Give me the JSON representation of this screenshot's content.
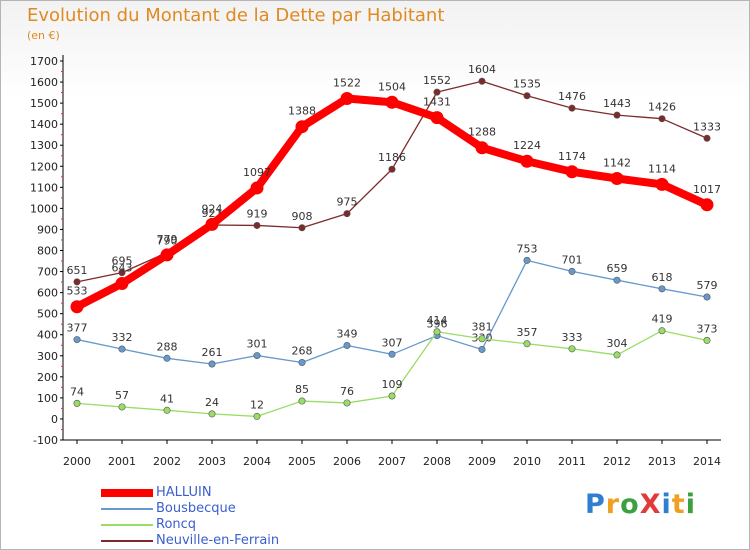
{
  "title": "Evolution du Montant de la Dette par Habitant",
  "subtitle": "(en €)",
  "logo": {
    "text": "ProXiti",
    "letter_colors": [
      "#2f7fd0",
      "#f0a020",
      "#3aa040",
      "#e03a3a",
      "#2f7fd0",
      "#f0a020",
      "#3aa040"
    ]
  },
  "chart_data": {
    "type": "line",
    "title": "Evolution du Montant de la Dette par Habitant",
    "subtitle": "(en €)",
    "xlabel": "",
    "ylabel": "",
    "ylim": [
      -100,
      1700
    ],
    "yticks": [
      -100,
      0,
      100,
      200,
      300,
      400,
      500,
      600,
      700,
      800,
      900,
      1000,
      1100,
      1200,
      1300,
      1400,
      1500,
      1600,
      1700
    ],
    "grid": false,
    "legend_position": "bottom-left",
    "categories": [
      "2000",
      "2001",
      "2002",
      "2003",
      "2004",
      "2005",
      "2006",
      "2007",
      "2008",
      "2009",
      "2010",
      "2011",
      "2012",
      "2013",
      "2014"
    ],
    "series": [
      {
        "name": "HALLUIN",
        "color": "#ff0000",
        "values": [
          533,
          643,
          779,
          924,
          1097,
          1388,
          1522,
          1504,
          1431,
          1288,
          1224,
          1174,
          1142,
          1114,
          1017
        ]
      },
      {
        "name": "Bousbecque",
        "color": "#6699cc",
        "values": [
          377,
          332,
          288,
          261,
          301,
          268,
          349,
          307,
          396,
          330,
          753,
          701,
          659,
          618,
          579
        ]
      },
      {
        "name": "Roncq",
        "color": "#99dd66",
        "values": [
          74,
          57,
          41,
          24,
          12,
          85,
          76,
          109,
          414,
          381,
          357,
          333,
          304,
          419,
          373
        ]
      },
      {
        "name": "Neuville-en-Ferrain",
        "color": "#7f2a2a",
        "values": [
          651,
          695,
          790,
          921,
          919,
          908,
          975,
          1186,
          1552,
          1604,
          1535,
          1476,
          1443,
          1426,
          1333
        ]
      }
    ]
  }
}
